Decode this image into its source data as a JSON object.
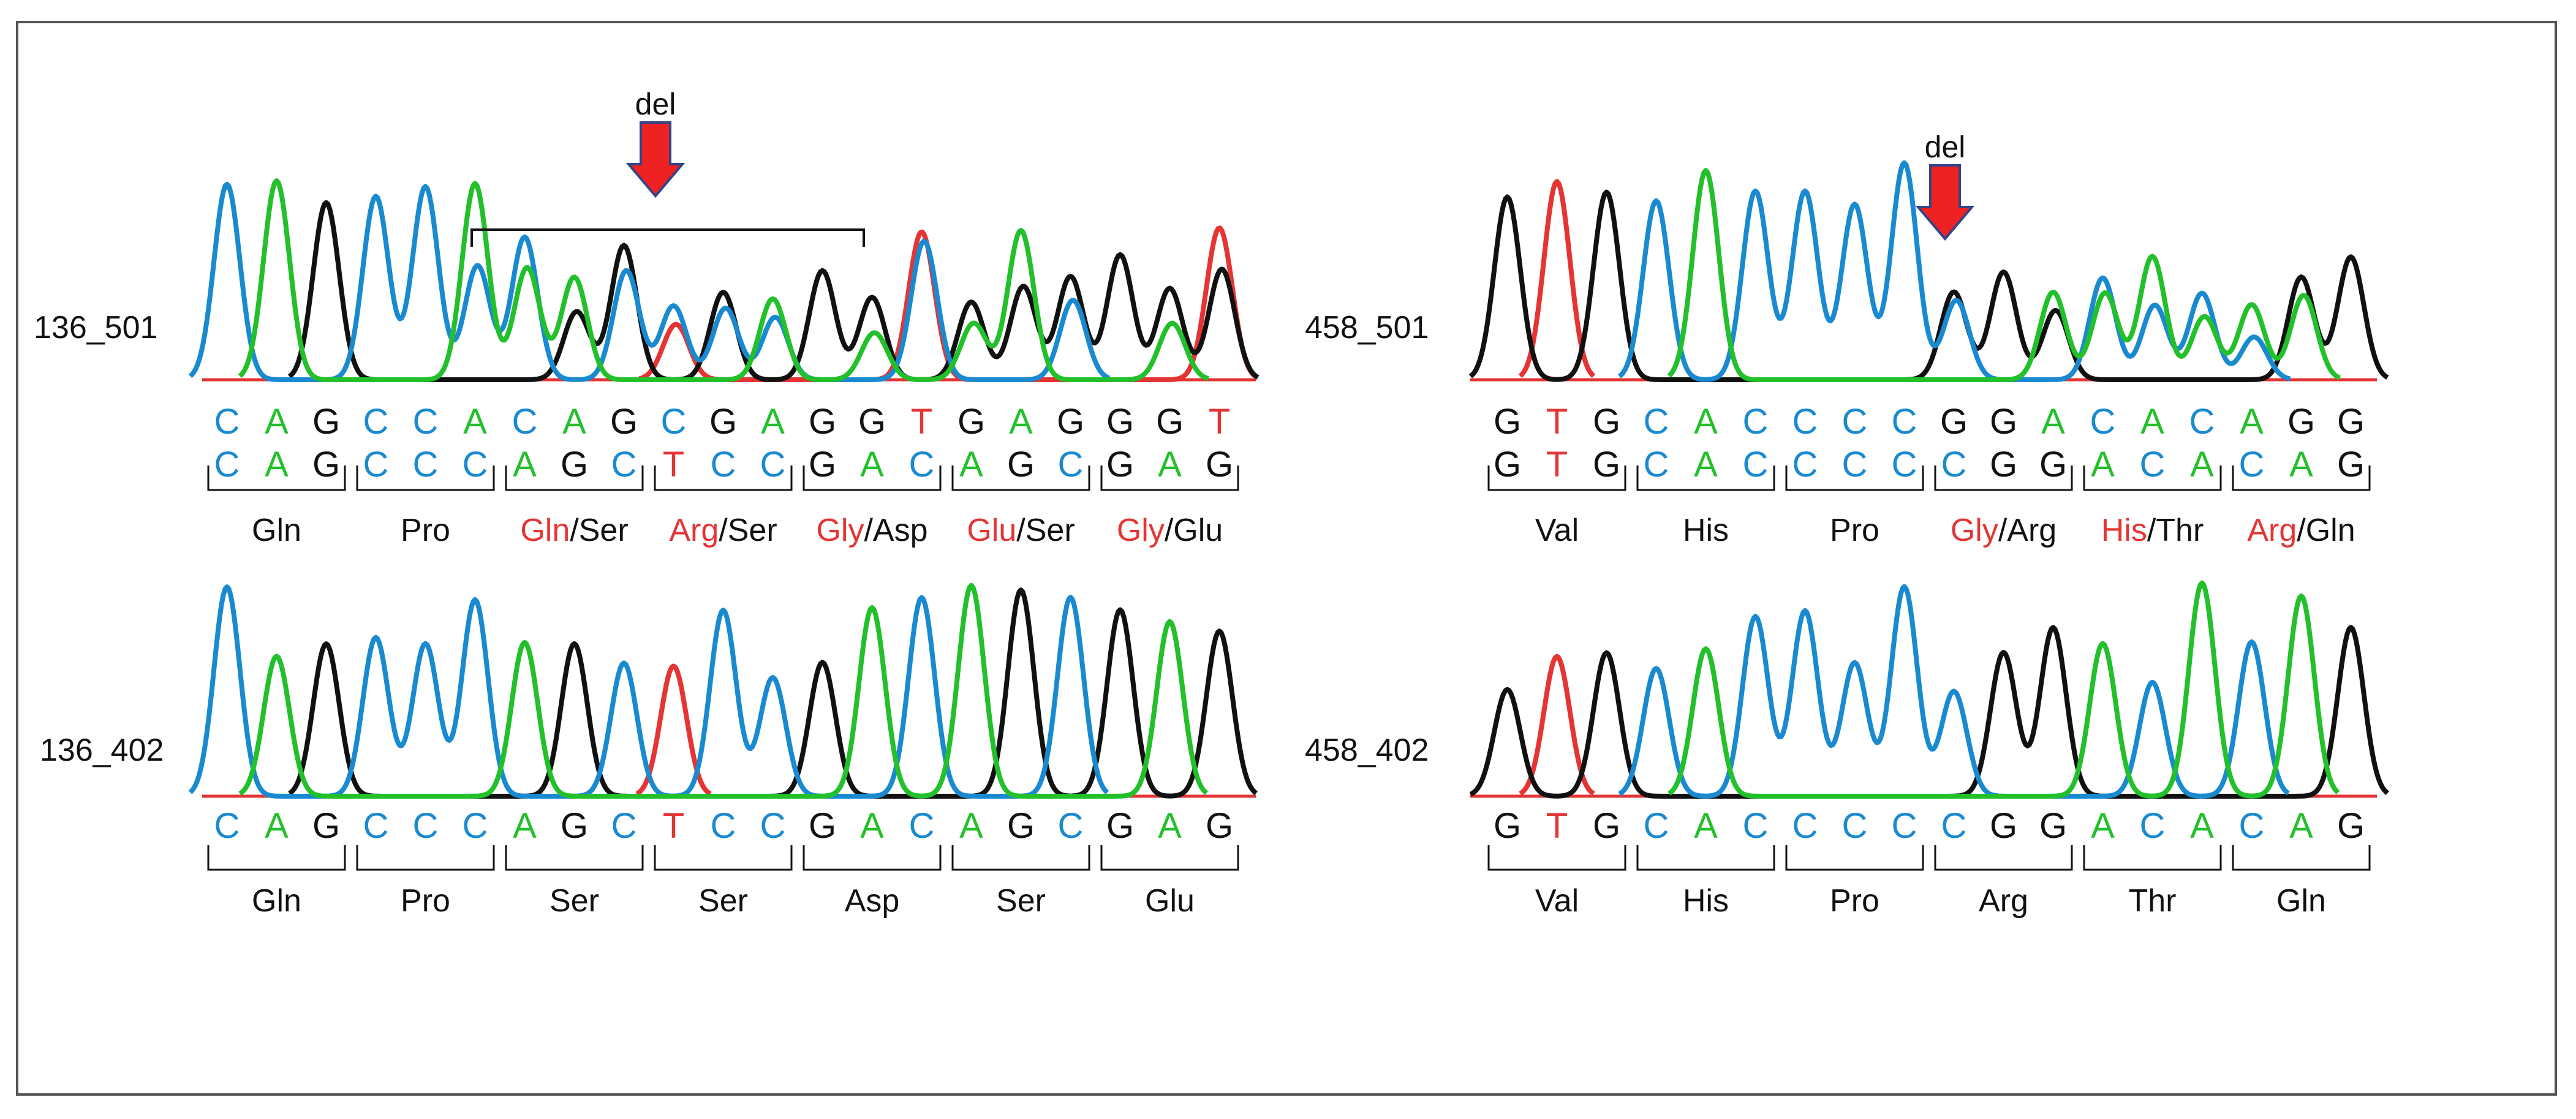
{
  "colors": {
    "A": "#22c02a",
    "C": "#1a8ad0",
    "G": "#111111",
    "T": "#e53434",
    "arrow": "#ee2222",
    "arrow_edge": "#334488",
    "frame": "#555555"
  },
  "panels": [
    {
      "id": "136_501",
      "label": "136_501",
      "deletion_label": "del",
      "trace_type": "mixed",
      "strand1": [
        "CAG",
        "CCA",
        "CAG",
        "CGA",
        "GGT",
        "GAG",
        "GGT"
      ],
      "strand2": [
        "CAG",
        "CCC",
        "AGC",
        "TCC",
        "GAC",
        "AGC",
        "GAG"
      ],
      "codons": [
        {
          "mut": "",
          "sep": "",
          "wt": "Gln"
        },
        {
          "mut": "",
          "sep": "",
          "wt": "Pro"
        },
        {
          "mut": "Gln",
          "sep": "/",
          "wt": "Ser"
        },
        {
          "mut": "Arg",
          "sep": "/",
          "wt": "Ser"
        },
        {
          "mut": "Gly",
          "sep": "/",
          "wt": "Asp"
        },
        {
          "mut": "Glu",
          "sep": "/",
          "wt": "Ser"
        },
        {
          "mut": "Gly",
          "sep": "/",
          "wt": "Glu"
        }
      ]
    },
    {
      "id": "458_501",
      "label": "458_501",
      "deletion_label": "del",
      "trace_type": "mixed",
      "strand1": [
        "GTG",
        "CAC",
        "CCC",
        "GGA",
        "CAC",
        "AGG"
      ],
      "strand2": [
        "GTG",
        "CAC",
        "CCC",
        "CGG",
        "ACA",
        "CAG"
      ],
      "codons": [
        {
          "mut": "",
          "sep": "",
          "wt": "Val"
        },
        {
          "mut": "",
          "sep": "",
          "wt": "His"
        },
        {
          "mut": "",
          "sep": "",
          "wt": "Pro"
        },
        {
          "mut": "Gly",
          "sep": "/",
          "wt": "Arg"
        },
        {
          "mut": "His",
          "sep": "/",
          "wt": "Thr"
        },
        {
          "mut": "Arg",
          "sep": "/",
          "wt": "Gln"
        }
      ]
    },
    {
      "id": "136_402",
      "label": "136_402",
      "trace_type": "clean",
      "strand1": [
        "CAG",
        "CCC",
        "AGC",
        "TCC",
        "GAC",
        "AGC",
        "GAG"
      ],
      "codons": [
        {
          "mut": "",
          "sep": "",
          "wt": "Gln"
        },
        {
          "mut": "",
          "sep": "",
          "wt": "Pro"
        },
        {
          "mut": "",
          "sep": "",
          "wt": "Ser"
        },
        {
          "mut": "",
          "sep": "",
          "wt": "Ser"
        },
        {
          "mut": "",
          "sep": "",
          "wt": "Asp"
        },
        {
          "mut": "",
          "sep": "",
          "wt": "Ser"
        },
        {
          "mut": "",
          "sep": "",
          "wt": "Glu"
        }
      ]
    },
    {
      "id": "458_402",
      "label": "458_402",
      "trace_type": "clean",
      "strand1": [
        "GTG",
        "CAC",
        "CCC",
        "CGG",
        "ACA",
        "CAG"
      ],
      "codons": [
        {
          "mut": "",
          "sep": "",
          "wt": "Val"
        },
        {
          "mut": "",
          "sep": "",
          "wt": "His"
        },
        {
          "mut": "",
          "sep": "",
          "wt": "Pro"
        },
        {
          "mut": "",
          "sep": "",
          "wt": "Arg"
        },
        {
          "mut": "",
          "sep": "",
          "wt": "Thr"
        },
        {
          "mut": "",
          "sep": "",
          "wt": "Gln"
        }
      ]
    }
  ]
}
